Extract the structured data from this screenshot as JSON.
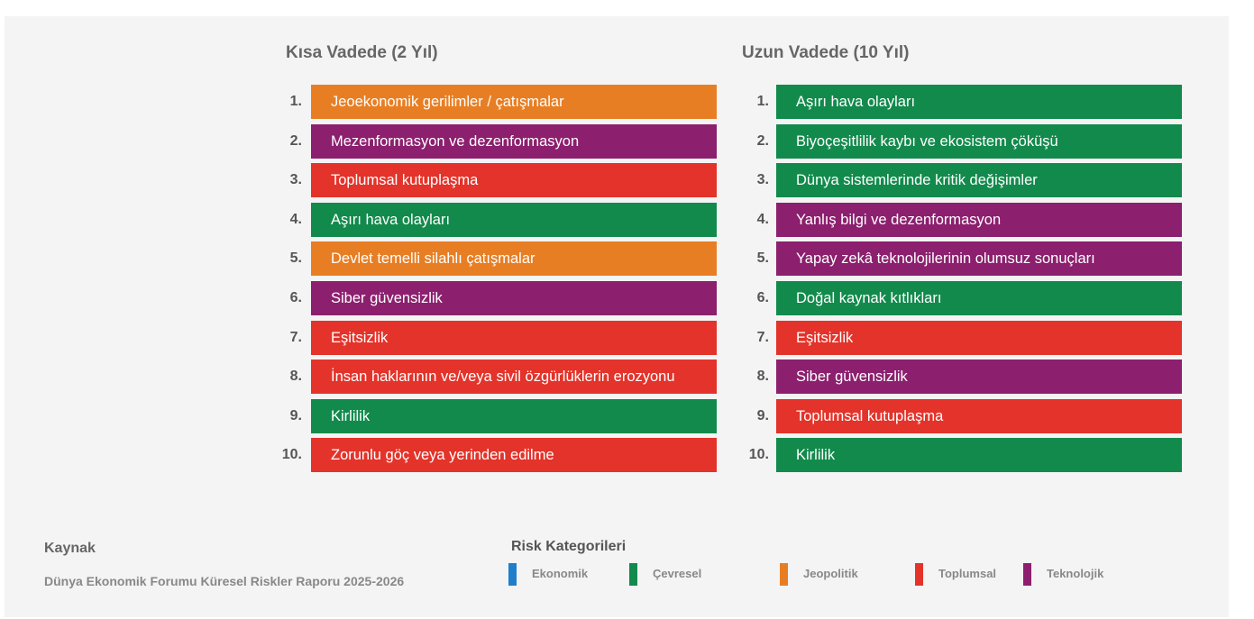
{
  "colors": {
    "ekonomik": "#1f7fcb",
    "cevresel": "#128a4c",
    "jeopolitik": "#e87e23",
    "toplumsal": "#e3332a",
    "teknolojik": "#8c1f6e"
  },
  "short_term": {
    "title": "Kısa Vadede (2 Yıl)",
    "items": [
      {
        "num": "1.",
        "label": "Jeoekonomik gerilimler / çatışmalar",
        "category": "jeopolitik"
      },
      {
        "num": "2.",
        "label": "Mezenformasyon ve dezenformasyon",
        "category": "teknolojik"
      },
      {
        "num": "3.",
        "label": "Toplumsal kutuplaşma",
        "category": "toplumsal"
      },
      {
        "num": "4.",
        "label": "Aşırı hava olayları",
        "category": "cevresel"
      },
      {
        "num": "5.",
        "label": "Devlet temelli silahlı çatışmalar",
        "category": "jeopolitik"
      },
      {
        "num": "6.",
        "label": "Siber güvensizlik",
        "category": "teknolojik"
      },
      {
        "num": "7.",
        "label": "Eşitsizlik",
        "category": "toplumsal"
      },
      {
        "num": "8.",
        "label": "İnsan haklarının ve/veya sivil özgürlüklerin erozyonu",
        "category": "toplumsal"
      },
      {
        "num": "9.",
        "label": "Kirlilik",
        "category": "cevresel"
      },
      {
        "num": "10.",
        "label": "Zorunlu göç veya yerinden edilme",
        "category": "toplumsal"
      }
    ]
  },
  "long_term": {
    "title": "Uzun Vadede (10 Yıl)",
    "items": [
      {
        "num": "1.",
        "label": "Aşırı hava olayları",
        "category": "cevresel"
      },
      {
        "num": "2.",
        "label": "Biyoçeşitlilik kaybı ve ekosistem çöküşü",
        "category": "cevresel"
      },
      {
        "num": "3.",
        "label": "Dünya sistemlerinde kritik değişimler",
        "category": "cevresel"
      },
      {
        "num": "4.",
        "label": "Yanlış bilgi ve dezenformasyon",
        "category": "teknolojik"
      },
      {
        "num": "5.",
        "label": "Yapay zekâ teknolojilerinin olumsuz sonuçları",
        "category": "teknolojik"
      },
      {
        "num": "6.",
        "label": "Doğal kaynak kıtlıkları",
        "category": "cevresel"
      },
      {
        "num": "7.",
        "label": "Eşitsizlik",
        "category": "toplumsal"
      },
      {
        "num": "8.",
        "label": "Siber güvensizlik",
        "category": "teknolojik"
      },
      {
        "num": "9.",
        "label": "Toplumsal kutuplaşma",
        "category": "toplumsal"
      },
      {
        "num": "10.",
        "label": "Kirlilik",
        "category": "cevresel"
      }
    ]
  },
  "source": {
    "title": "Kaynak",
    "text": "Dünya Ekonomik Forumu Küresel Riskler Raporu 2025-2026"
  },
  "legend": {
    "title": "Risk Kategorileri",
    "items": [
      {
        "key": "ekonomik",
        "label": "Ekonomik"
      },
      {
        "key": "cevresel",
        "label": "Çevresel"
      },
      {
        "key": "jeopolitik",
        "label": "Jeopolitik"
      },
      {
        "key": "toplumsal",
        "label": "Toplumsal"
      },
      {
        "key": "teknolojik",
        "label": "Teknolojik"
      }
    ]
  }
}
